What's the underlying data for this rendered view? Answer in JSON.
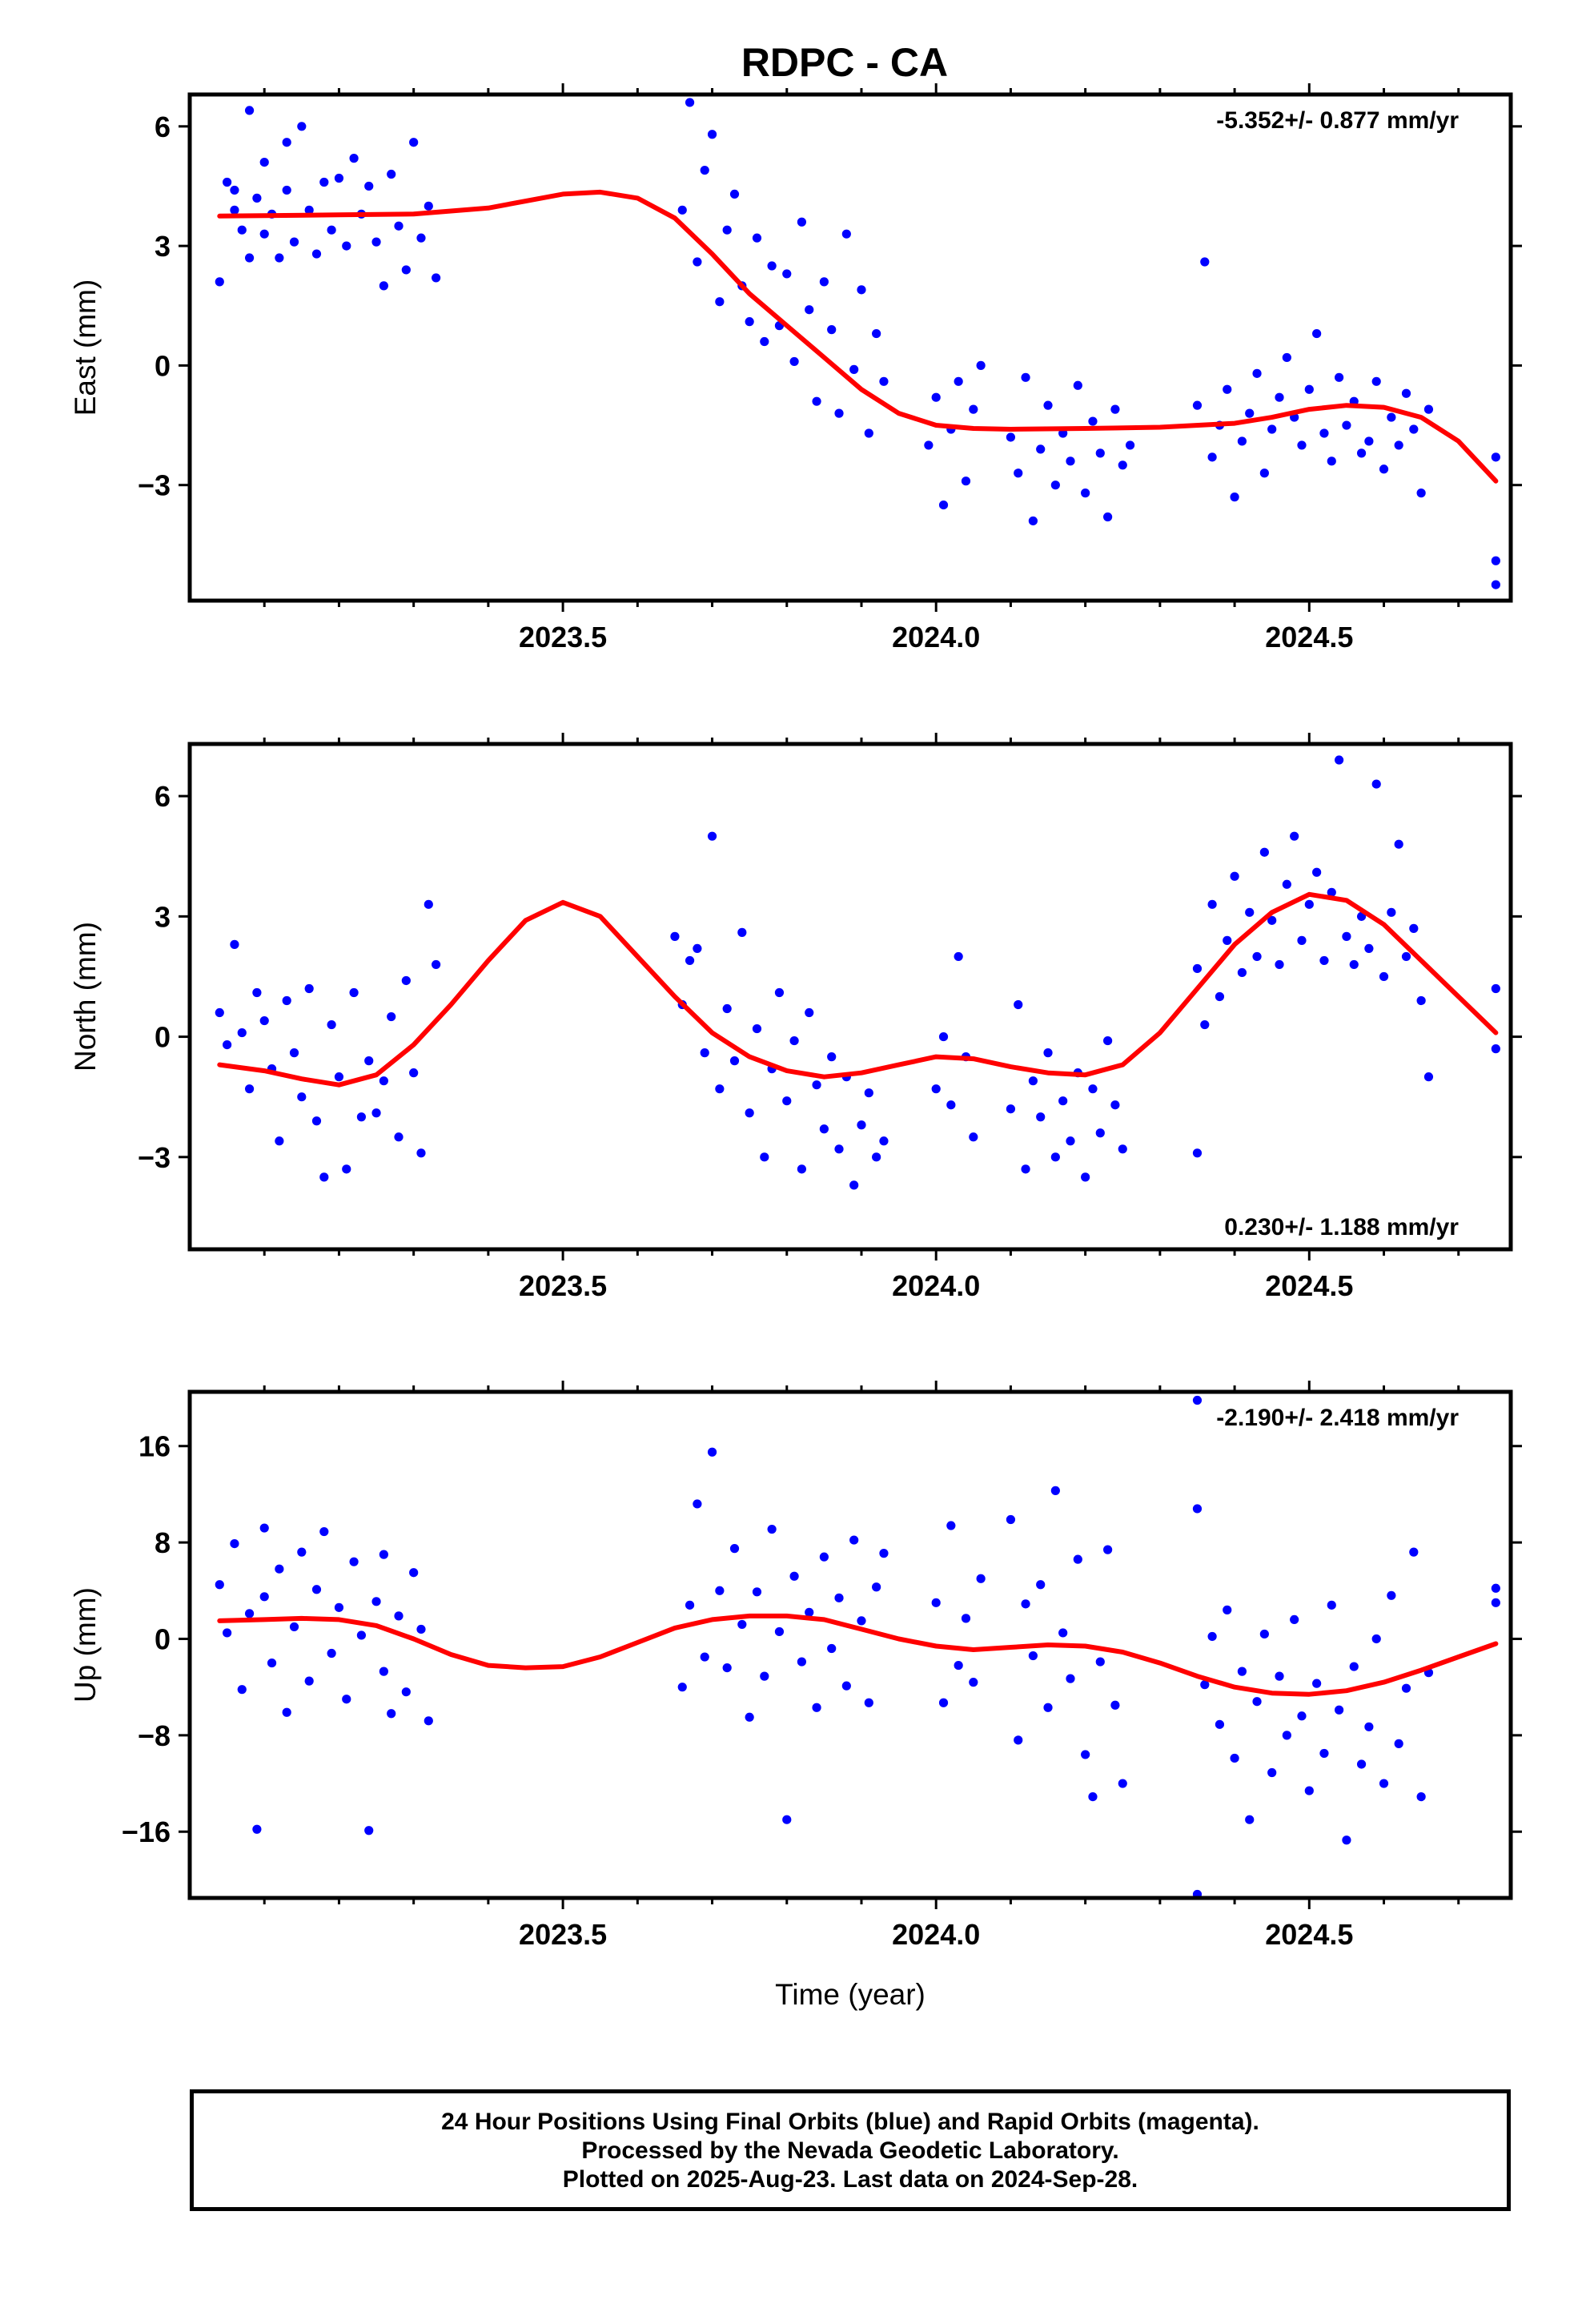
{
  "title": "RDPC - CA",
  "caption": {
    "lines": [
      "24 Hour Positions Using Final Orbits (blue) and Rapid Orbits (magenta).",
      "Processed by the Nevada Geodetic Laboratory.",
      "Plotted on 2025-Aug-23. Last data on 2024-Sep-28."
    ]
  },
  "colors": {
    "points": "#0000ff",
    "fit": "#ff0000",
    "axis": "#000000"
  },
  "chart_data": [
    {
      "type": "scatter",
      "component": "East",
      "ylabel": "East (mm)",
      "xlabel": "",
      "xlim": [
        2023.0,
        2024.77
      ],
      "ylim": [
        -5.9,
        6.8
      ],
      "yticks": [
        -3,
        0,
        3,
        6
      ],
      "ytick_labels": [
        "−3",
        "0",
        "3",
        "6"
      ],
      "xticks": [
        2023.5,
        2024.0,
        2024.5
      ],
      "xtick_labels": [
        "2023.5",
        "2024.0",
        "2024.5"
      ],
      "rate_label": "-5.352+/- 0.877 mm/yr",
      "rate_label_position": "top-right",
      "fit_curve": {
        "x": [
          2023.04,
          2023.1,
          2023.2,
          2023.3,
          2023.4,
          2023.5,
          2023.55,
          2023.6,
          2023.65,
          2023.7,
          2023.75,
          2023.8,
          2023.85,
          2023.9,
          2023.95,
          2024.0,
          2024.05,
          2024.1,
          2024.2,
          2024.3,
          2024.4,
          2024.45,
          2024.5,
          2024.55,
          2024.6,
          2024.65,
          2024.7,
          2024.75
        ],
        "y": [
          3.75,
          3.76,
          3.78,
          3.8,
          3.95,
          4.3,
          4.35,
          4.2,
          3.7,
          2.8,
          1.8,
          1.0,
          0.2,
          -0.6,
          -1.2,
          -1.5,
          -1.58,
          -1.6,
          -1.58,
          -1.55,
          -1.45,
          -1.3,
          -1.1,
          -1.0,
          -1.05,
          -1.3,
          -1.9,
          -2.9
        ]
      },
      "points": {
        "x": [
          2023.04,
          2023.05,
          2023.06,
          2023.06,
          2023.07,
          2023.08,
          2023.08,
          2023.09,
          2023.1,
          2023.1,
          2023.11,
          2023.12,
          2023.13,
          2023.13,
          2023.14,
          2023.15,
          2023.16,
          2023.17,
          2023.18,
          2023.19,
          2023.2,
          2023.21,
          2023.22,
          2023.23,
          2023.24,
          2023.25,
          2023.26,
          2023.27,
          2023.28,
          2023.29,
          2023.3,
          2023.31,
          2023.32,
          2023.33,
          2023.66,
          2023.67,
          2023.68,
          2023.69,
          2023.7,
          2023.71,
          2023.72,
          2023.73,
          2023.74,
          2023.75,
          2023.76,
          2023.77,
          2023.78,
          2023.79,
          2023.8,
          2023.81,
          2023.82,
          2023.83,
          2023.84,
          2023.85,
          2023.86,
          2023.87,
          2023.88,
          2023.89,
          2023.9,
          2023.91,
          2023.92,
          2023.93,
          2023.99,
          2024.0,
          2024.01,
          2024.02,
          2024.03,
          2024.04,
          2024.05,
          2024.06,
          2024.1,
          2024.11,
          2024.12,
          2024.13,
          2024.14,
          2024.15,
          2024.16,
          2024.17,
          2024.18,
          2024.19,
          2024.2,
          2024.21,
          2024.22,
          2024.23,
          2024.24,
          2024.25,
          2024.26,
          2024.35,
          2024.36,
          2024.37,
          2024.38,
          2024.39,
          2024.4,
          2024.41,
          2024.42,
          2024.43,
          2024.44,
          2024.45,
          2024.46,
          2024.47,
          2024.48,
          2024.49,
          2024.5,
          2024.51,
          2024.52,
          2024.53,
          2024.54,
          2024.55,
          2024.56,
          2024.57,
          2024.58,
          2024.59,
          2024.6,
          2024.61,
          2024.62,
          2024.63,
          2024.64,
          2024.65,
          2024.66,
          2024.75,
          2024.75,
          2024.75
        ],
        "y": [
          2.1,
          4.6,
          3.9,
          4.4,
          3.4,
          6.4,
          2.7,
          4.2,
          3.3,
          5.1,
          3.8,
          2.7,
          4.4,
          5.6,
          3.1,
          6.0,
          3.9,
          2.8,
          4.6,
          3.4,
          4.7,
          3.0,
          5.2,
          3.8,
          4.5,
          3.1,
          2.0,
          4.8,
          3.5,
          2.4,
          5.6,
          3.2,
          4.0,
          2.2,
          3.9,
          6.6,
          2.6,
          4.9,
          5.8,
          1.6,
          3.4,
          4.3,
          2.0,
          1.1,
          3.2,
          0.6,
          2.5,
          1.0,
          2.3,
          0.1,
          3.6,
          1.4,
          -0.9,
          2.1,
          0.9,
          -1.2,
          3.3,
          -0.1,
          1.9,
          -1.7,
          0.8,
          -0.4,
          -2.0,
          -0.8,
          -3.5,
          -1.6,
          -0.4,
          -2.9,
          -1.1,
          0.0,
          -1.8,
          -2.7,
          -0.3,
          -3.9,
          -2.1,
          -1.0,
          -3.0,
          -1.7,
          -2.4,
          -0.5,
          -3.2,
          -1.4,
          -2.2,
          -3.8,
          -1.1,
          -2.5,
          -2.0,
          -1.0,
          2.6,
          -2.3,
          -1.5,
          -0.6,
          -3.3,
          -1.9,
          -1.2,
          -0.2,
          -2.7,
          -1.6,
          -0.8,
          0.2,
          -1.3,
          -2.0,
          -0.6,
          0.8,
          -1.7,
          -2.4,
          -0.3,
          -1.5,
          -0.9,
          -2.2,
          -1.9,
          -0.4,
          -2.6,
          -1.3,
          -2.0,
          -0.7,
          -1.6,
          -3.2,
          -1.1,
          -2.3,
          -4.9,
          -5.5
        ]
      }
    },
    {
      "type": "scatter",
      "component": "North",
      "ylabel": "North (mm)",
      "xlabel": "",
      "xlim": [
        2023.0,
        2024.77
      ],
      "ylim": [
        -5.3,
        7.3
      ],
      "yticks": [
        -3,
        0,
        3,
        6
      ],
      "ytick_labels": [
        "−3",
        "0",
        "3",
        "6"
      ],
      "xticks": [
        2023.5,
        2024.0,
        2024.5
      ],
      "xtick_labels": [
        "2023.5",
        "2024.0",
        "2024.5"
      ],
      "rate_label": "0.230+/- 1.188 mm/yr",
      "rate_label_position": "bottom-right",
      "fit_curve": {
        "x": [
          2023.04,
          2023.1,
          2023.15,
          2023.2,
          2023.25,
          2023.3,
          2023.35,
          2023.4,
          2023.45,
          2023.5,
          2023.55,
          2023.6,
          2023.65,
          2023.7,
          2023.75,
          2023.8,
          2023.85,
          2023.9,
          2023.95,
          2024.0,
          2024.05,
          2024.1,
          2024.15,
          2024.2,
          2024.25,
          2024.3,
          2024.35,
          2024.4,
          2024.45,
          2024.5,
          2024.55,
          2024.6,
          2024.65,
          2024.7,
          2024.75
        ],
        "y": [
          -0.7,
          -0.85,
          -1.05,
          -1.2,
          -0.95,
          -0.2,
          0.8,
          1.9,
          2.9,
          3.35,
          3.0,
          2.0,
          1.0,
          0.1,
          -0.5,
          -0.85,
          -1.0,
          -0.9,
          -0.7,
          -0.5,
          -0.55,
          -0.75,
          -0.9,
          -0.95,
          -0.7,
          0.1,
          1.2,
          2.3,
          3.1,
          3.55,
          3.4,
          2.8,
          1.9,
          1.0,
          0.1
        ]
      },
      "points": {
        "x": [
          2023.04,
          2023.05,
          2023.06,
          2023.07,
          2023.08,
          2023.09,
          2023.1,
          2023.11,
          2023.12,
          2023.13,
          2023.14,
          2023.15,
          2023.16,
          2023.17,
          2023.18,
          2023.19,
          2023.2,
          2023.21,
          2023.22,
          2023.23,
          2023.24,
          2023.25,
          2023.26,
          2023.27,
          2023.28,
          2023.29,
          2023.3,
          2023.31,
          2023.32,
          2023.33,
          2023.65,
          2023.66,
          2023.67,
          2023.68,
          2023.69,
          2023.7,
          2023.71,
          2023.72,
          2023.73,
          2023.74,
          2023.75,
          2023.76,
          2023.77,
          2023.78,
          2023.79,
          2023.8,
          2023.81,
          2023.82,
          2023.83,
          2023.84,
          2023.85,
          2023.86,
          2023.87,
          2023.88,
          2023.89,
          2023.9,
          2023.91,
          2023.92,
          2023.93,
          2024.0,
          2024.01,
          2024.02,
          2024.03,
          2024.04,
          2024.05,
          2024.1,
          2024.11,
          2024.12,
          2024.13,
          2024.14,
          2024.15,
          2024.16,
          2024.17,
          2024.18,
          2024.19,
          2024.2,
          2024.21,
          2024.22,
          2024.23,
          2024.24,
          2024.25,
          2024.35,
          2024.36,
          2024.37,
          2024.38,
          2024.39,
          2024.4,
          2024.41,
          2024.42,
          2024.43,
          2024.44,
          2024.45,
          2024.46,
          2024.47,
          2024.48,
          2024.49,
          2024.5,
          2024.51,
          2024.52,
          2024.53,
          2024.54,
          2024.55,
          2024.56,
          2024.57,
          2024.58,
          2024.59,
          2024.6,
          2024.61,
          2024.62,
          2024.63,
          2024.64,
          2024.65,
          2024.66,
          2024.35,
          2024.75,
          2024.75
        ],
        "y": [
          0.6,
          -0.2,
          2.3,
          0.1,
          -1.3,
          1.1,
          0.4,
          -0.8,
          -2.6,
          0.9,
          -0.4,
          -1.5,
          1.2,
          -2.1,
          -3.5,
          0.3,
          -1.0,
          -3.3,
          1.1,
          -2.0,
          -0.6,
          -1.9,
          -1.1,
          0.5,
          -2.5,
          1.4,
          -0.9,
          -2.9,
          3.3,
          1.8,
          2.5,
          0.8,
          1.9,
          2.2,
          -0.4,
          5.0,
          -1.3,
          0.7,
          -0.6,
          2.6,
          -1.9,
          0.2,
          -3.0,
          -0.8,
          1.1,
          -1.6,
          -0.1,
          -3.3,
          0.6,
          -1.2,
          -2.3,
          -0.5,
          -2.8,
          -1.0,
          -3.7,
          -2.2,
          -1.4,
          -3.0,
          -2.6,
          -1.3,
          0.0,
          -1.7,
          2.0,
          -0.5,
          -2.5,
          -1.8,
          0.8,
          -3.3,
          -1.1,
          -2.0,
          -0.4,
          -3.0,
          -1.6,
          -2.6,
          -0.9,
          -3.5,
          -1.3,
          -2.4,
          -0.1,
          -1.7,
          -2.8,
          1.7,
          0.3,
          3.3,
          1.0,
          2.4,
          4.0,
          1.6,
          3.1,
          2.0,
          4.6,
          2.9,
          1.8,
          3.8,
          5.0,
          2.4,
          3.3,
          4.1,
          1.9,
          3.6,
          6.9,
          2.5,
          1.8,
          3.0,
          2.2,
          6.3,
          1.5,
          3.1,
          4.8,
          2.0,
          2.7,
          0.9,
          -1.0,
          -2.9,
          1.2,
          -0.3
        ]
      }
    },
    {
      "type": "scatter",
      "component": "Up",
      "ylabel": "Up (mm)",
      "xlabel": "Time (year)",
      "xlim": [
        2023.0,
        2024.77
      ],
      "ylim": [
        -21.5,
        20.5
      ],
      "yticks": [
        -16,
        -8,
        0,
        8,
        16
      ],
      "ytick_labels": [
        "−16",
        "−8",
        "0",
        "8",
        "16"
      ],
      "xticks": [
        2023.5,
        2024.0,
        2024.5
      ],
      "xtick_labels": [
        "2023.5",
        "2024.0",
        "2024.5"
      ],
      "rate_label": "-2.190+/- 2.418 mm/yr",
      "rate_label_position": "top-right",
      "fit_curve": {
        "x": [
          2023.04,
          2023.1,
          2023.15,
          2023.2,
          2023.25,
          2023.3,
          2023.35,
          2023.4,
          2023.45,
          2023.5,
          2023.55,
          2023.6,
          2023.65,
          2023.7,
          2023.75,
          2023.8,
          2023.85,
          2023.9,
          2023.95,
          2024.0,
          2024.05,
          2024.1,
          2024.15,
          2024.2,
          2024.25,
          2024.3,
          2024.35,
          2024.4,
          2024.45,
          2024.5,
          2024.55,
          2024.6,
          2024.65,
          2024.7,
          2024.75
        ],
        "y": [
          1.5,
          1.6,
          1.7,
          1.6,
          1.1,
          0.0,
          -1.3,
          -2.2,
          -2.4,
          -2.3,
          -1.5,
          -0.3,
          0.9,
          1.6,
          1.9,
          1.9,
          1.6,
          0.8,
          0.0,
          -0.6,
          -0.9,
          -0.7,
          -0.5,
          -0.6,
          -1.1,
          -2.0,
          -3.1,
          -4.0,
          -4.5,
          -4.6,
          -4.3,
          -3.6,
          -2.6,
          -1.5,
          -0.4
        ]
      },
      "points": {
        "x": [
          2023.04,
          2023.05,
          2023.06,
          2023.07,
          2023.08,
          2023.09,
          2023.1,
          2023.1,
          2023.11,
          2023.12,
          2023.13,
          2023.14,
          2023.15,
          2023.16,
          2023.17,
          2023.18,
          2023.19,
          2023.2,
          2023.21,
          2023.22,
          2023.23,
          2023.24,
          2023.25,
          2023.26,
          2023.26,
          2023.27,
          2023.28,
          2023.29,
          2023.3,
          2023.31,
          2023.32,
          2023.66,
          2023.67,
          2023.68,
          2023.69,
          2023.7,
          2023.71,
          2023.72,
          2023.73,
          2023.74,
          2023.75,
          2023.76,
          2023.77,
          2023.78,
          2023.79,
          2023.8,
          2023.81,
          2023.82,
          2023.83,
          2023.84,
          2023.85,
          2023.86,
          2023.87,
          2023.88,
          2023.89,
          2023.9,
          2023.91,
          2023.92,
          2023.93,
          2024.0,
          2024.01,
          2024.02,
          2024.03,
          2024.04,
          2024.05,
          2024.06,
          2024.1,
          2024.11,
          2024.12,
          2024.13,
          2024.14,
          2024.15,
          2024.16,
          2024.17,
          2024.18,
          2024.19,
          2024.2,
          2024.21,
          2024.22,
          2024.23,
          2024.24,
          2024.25,
          2024.35,
          2024.36,
          2024.37,
          2024.38,
          2024.39,
          2024.4,
          2024.41,
          2024.42,
          2024.43,
          2024.44,
          2024.45,
          2024.46,
          2024.47,
          2024.48,
          2024.49,
          2024.5,
          2024.51,
          2024.52,
          2024.53,
          2024.54,
          2024.55,
          2024.56,
          2024.57,
          2024.58,
          2024.59,
          2024.6,
          2024.61,
          2024.62,
          2024.63,
          2024.64,
          2024.65,
          2024.66,
          2024.35,
          2024.35,
          2024.75,
          2024.75
        ],
        "y": [
          4.5,
          0.5,
          7.9,
          -4.2,
          2.1,
          -15.8,
          3.5,
          9.2,
          -2.0,
          5.8,
          -6.1,
          1.0,
          7.2,
          -3.5,
          4.1,
          8.9,
          -1.2,
          2.6,
          -5.0,
          6.4,
          0.3,
          -15.9,
          3.1,
          -2.7,
          7.0,
          -6.2,
          1.9,
          -4.4,
          5.5,
          0.8,
          -6.8,
          -4.0,
          2.8,
          11.2,
          -1.5,
          15.5,
          4.0,
          -2.4,
          7.5,
          1.2,
          -6.5,
          3.9,
          -3.1,
          9.1,
          0.6,
          -15.0,
          5.2,
          -1.9,
          2.2,
          -5.7,
          6.8,
          -0.8,
          3.4,
          -3.9,
          8.2,
          1.5,
          -5.3,
          4.3,
          7.1,
          3.0,
          -5.3,
          9.4,
          -2.2,
          1.7,
          -3.6,
          5.0,
          9.9,
          -8.4,
          2.9,
          -1.4,
          4.5,
          -5.7,
          12.3,
          0.5,
          -3.3,
          6.6,
          -9.6,
          -13.1,
          -1.9,
          7.4,
          -5.5,
          -12.0,
          10.8,
          -3.8,
          0.2,
          -7.1,
          2.4,
          -9.9,
          -2.7,
          -15.0,
          -5.2,
          0.4,
          -11.1,
          -3.1,
          -8.0,
          1.6,
          -6.4,
          -12.6,
          -3.7,
          -9.5,
          2.8,
          -5.9,
          -16.7,
          -2.3,
          -10.4,
          -7.3,
          0.0,
          -12.0,
          3.6,
          -8.7,
          -4.1,
          7.2,
          -13.1,
          -2.8,
          19.8,
          -21.2,
          4.2,
          3.0
        ]
      }
    }
  ]
}
